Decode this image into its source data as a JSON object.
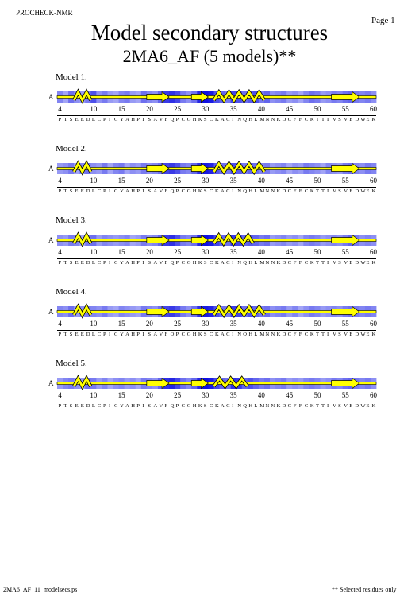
{
  "header": {
    "program": "PROCHECK-NMR",
    "page_label": "Page 1",
    "title": "Model secondary structures",
    "subtitle": "2MA6_AF (5 models)**"
  },
  "footer": {
    "filename": "2MA6_AF_11_modelsecs.ps",
    "note": "** Selected residues only"
  },
  "residue_axis": {
    "first_residue": 4,
    "last_residue": 60,
    "tick_labels": [
      "4",
      "10",
      "15",
      "20",
      "25",
      "30",
      "35",
      "40",
      "45",
      "50",
      "55",
      "60"
    ],
    "sequence": "PTSEEDLCPICYAHPISAVFQPCGHKSCKACINQHLMNNKDCFFCKTTIVSVEDWEK"
  },
  "legend": {
    "strand_color": "#FFFF00",
    "helix_color": "#FFFF00",
    "shading_dark": "#1010E0",
    "shading_light": "#E0E4FF"
  },
  "models": [
    {
      "label": "Model 1.",
      "chain": "A",
      "elements": [
        {
          "type": "helix",
          "start": 7,
          "end": 9
        },
        {
          "type": "strand",
          "start": 20,
          "end": 23
        },
        {
          "type": "strand",
          "start": 28,
          "end": 30
        },
        {
          "type": "helix",
          "start": 32,
          "end": 40
        },
        {
          "type": "strand",
          "start": 53,
          "end": 57
        }
      ],
      "shading": [
        0.45,
        0.3,
        0.55,
        0.4,
        0.35,
        0.5,
        0.7,
        0.4,
        0.5,
        0.35,
        0.3,
        0.45,
        0.5,
        0.35,
        0.3,
        0.55,
        0.45,
        0.4,
        0.6,
        0.8,
        0.85,
        0.75,
        0.5,
        0.4,
        0.55,
        0.9,
        1,
        0.95,
        0.7,
        0.6,
        0.5,
        0.75,
        0.7,
        0.55,
        0.65,
        0.7,
        0.5,
        0.6,
        0.4,
        0.45,
        0.5,
        0.35,
        0.4,
        0.3,
        0.45,
        0.55,
        0.5,
        0.35,
        0.4,
        0.5,
        0.45,
        0.55,
        0.6,
        0.5,
        0.45,
        0.5,
        0.4
      ]
    },
    {
      "label": "Model 2.",
      "chain": "A",
      "elements": [
        {
          "type": "helix",
          "start": 7,
          "end": 9
        },
        {
          "type": "strand",
          "start": 20,
          "end": 23
        },
        {
          "type": "strand",
          "start": 28,
          "end": 30
        },
        {
          "type": "helix",
          "start": 32,
          "end": 40
        },
        {
          "type": "strand",
          "start": 53,
          "end": 57
        }
      ],
      "shading": [
        0.35,
        0.4,
        0.5,
        0.3,
        0.45,
        0.55,
        0.4,
        0.35,
        0.5,
        0.3,
        0.45,
        0.5,
        0.3,
        0.4,
        0.35,
        0.5,
        0.4,
        0.45,
        0.55,
        0.75,
        0.8,
        0.7,
        0.5,
        0.45,
        0.6,
        0.85,
        0.95,
        0.9,
        0.65,
        0.55,
        0.5,
        0.7,
        0.65,
        0.5,
        0.6,
        0.55,
        0.45,
        0.5,
        0.35,
        0.4,
        0.45,
        0.3,
        0.4,
        0.35,
        0.5,
        0.45,
        0.4,
        0.3,
        0.45,
        0.4,
        0.35,
        0.5,
        0.55,
        0.45,
        0.4,
        0.5,
        0.45
      ]
    },
    {
      "label": "Model 3.",
      "chain": "A",
      "elements": [
        {
          "type": "helix",
          "start": 7,
          "end": 9
        },
        {
          "type": "strand",
          "start": 20,
          "end": 23
        },
        {
          "type": "strand",
          "start": 28,
          "end": 30
        },
        {
          "type": "helix",
          "start": 32,
          "end": 38
        },
        {
          "type": "strand",
          "start": 53,
          "end": 57
        }
      ],
      "shading": [
        0.4,
        0.35,
        0.5,
        0.45,
        0.3,
        0.5,
        0.55,
        0.35,
        0.45,
        0.4,
        0.35,
        0.4,
        0.45,
        0.3,
        0.35,
        0.5,
        0.4,
        0.45,
        0.6,
        0.8,
        0.85,
        0.7,
        0.5,
        0.45,
        0.55,
        0.9,
        1,
        0.95,
        0.75,
        0.6,
        0.55,
        0.8,
        0.75,
        0.6,
        0.65,
        0.6,
        0.5,
        0.55,
        0.35,
        0.4,
        0.45,
        0.35,
        0.4,
        0.3,
        0.45,
        0.5,
        0.45,
        0.35,
        0.4,
        0.45,
        0.4,
        0.5,
        0.6,
        0.5,
        0.4,
        0.45,
        0.4
      ]
    },
    {
      "label": "Model 4.",
      "chain": "A",
      "elements": [
        {
          "type": "helix",
          "start": 7,
          "end": 9
        },
        {
          "type": "strand",
          "start": 20,
          "end": 23
        },
        {
          "type": "strand",
          "start": 28,
          "end": 30
        },
        {
          "type": "helix",
          "start": 32,
          "end": 40
        },
        {
          "type": "strand",
          "start": 53,
          "end": 57
        }
      ],
      "shading": [
        0.45,
        0.4,
        0.55,
        0.35,
        0.4,
        0.5,
        0.45,
        0.4,
        0.5,
        0.35,
        0.3,
        0.45,
        0.4,
        0.35,
        0.3,
        0.5,
        0.45,
        0.4,
        0.55,
        0.75,
        0.8,
        0.7,
        0.5,
        0.4,
        0.55,
        0.85,
        0.95,
        0.9,
        0.7,
        0.55,
        0.5,
        0.8,
        0.75,
        0.55,
        0.7,
        0.6,
        0.5,
        0.55,
        0.4,
        0.45,
        0.5,
        0.35,
        0.45,
        0.3,
        0.4,
        0.5,
        0.45,
        0.35,
        0.4,
        0.45,
        0.4,
        0.5,
        0.55,
        0.5,
        0.45,
        0.5,
        0.45
      ]
    },
    {
      "label": "Model 5.",
      "chain": "A",
      "elements": [
        {
          "type": "helix",
          "start": 7,
          "end": 9
        },
        {
          "type": "strand",
          "start": 20,
          "end": 23
        },
        {
          "type": "strand",
          "start": 28,
          "end": 30
        },
        {
          "type": "helix",
          "start": 32,
          "end": 37
        },
        {
          "type": "strand",
          "start": 53,
          "end": 57
        }
      ],
      "shading": [
        0.35,
        0.45,
        0.5,
        0.4,
        0.35,
        0.55,
        0.5,
        0.35,
        0.45,
        0.3,
        0.4,
        0.45,
        0.35,
        0.4,
        0.3,
        0.5,
        0.45,
        0.4,
        0.6,
        0.85,
        0.9,
        0.75,
        0.55,
        0.45,
        0.6,
        0.9,
        1,
        0.95,
        0.75,
        0.6,
        0.55,
        0.85,
        0.8,
        0.6,
        0.7,
        0.6,
        0.5,
        0.55,
        0.4,
        0.45,
        0.5,
        0.35,
        0.4,
        0.35,
        0.45,
        0.5,
        0.45,
        0.35,
        0.4,
        0.5,
        0.45,
        0.55,
        0.6,
        0.5,
        0.45,
        0.5,
        0.4
      ]
    }
  ]
}
